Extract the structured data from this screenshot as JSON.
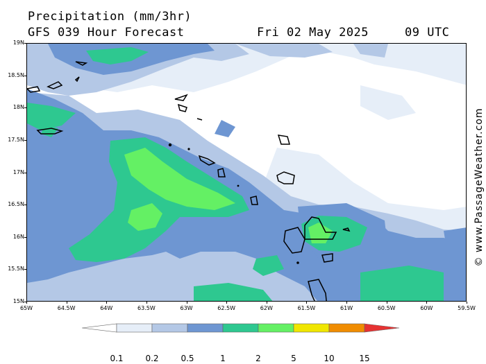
{
  "header": {
    "title": "Precipitation (mm/3hr)",
    "model_line": "GFS 039 Hour Forecast",
    "date": "Fri 02 May 2025",
    "time": "09 UTC"
  },
  "axes": {
    "lat_labels": [
      "19N",
      "18.5N",
      "18N",
      "17.5N",
      "17N",
      "16.5N",
      "16N",
      "15.5N",
      "15N"
    ],
    "lon_labels": [
      "65W",
      "64.5W",
      "64W",
      "63.5W",
      "63W",
      "62.5W",
      "62W",
      "61.5W",
      "61W",
      "60.5W",
      "60W",
      "59.5W"
    ],
    "lat_range": [
      15,
      19
    ],
    "lon_range": [
      -65,
      -59.5
    ]
  },
  "watermark": "© www.PassageWeather.com",
  "legend": {
    "labels": [
      "0.1",
      "0.2",
      "0.5",
      "1",
      "2",
      "5",
      "10",
      "15"
    ],
    "colors": [
      "#ffffff",
      "#e6eef8",
      "#b4c8e6",
      "#6e96d2",
      "#2ec890",
      "#64f064",
      "#f0e600",
      "#f08c00",
      "#e63232"
    ]
  }
}
